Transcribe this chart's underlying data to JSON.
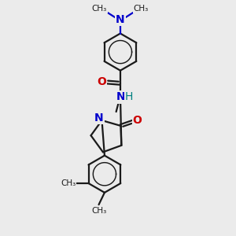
{
  "bg_color": "#ebebeb",
  "bond_color": "#1a1a1a",
  "N_color": "#0000cc",
  "O_color": "#cc0000",
  "NH_color": "#008080",
  "line_width": 1.6,
  "font_size": 9,
  "figsize": [
    3.0,
    3.0
  ],
  "dpi": 100,
  "xlim": [
    0,
    10
  ],
  "ylim": [
    0,
    10
  ]
}
